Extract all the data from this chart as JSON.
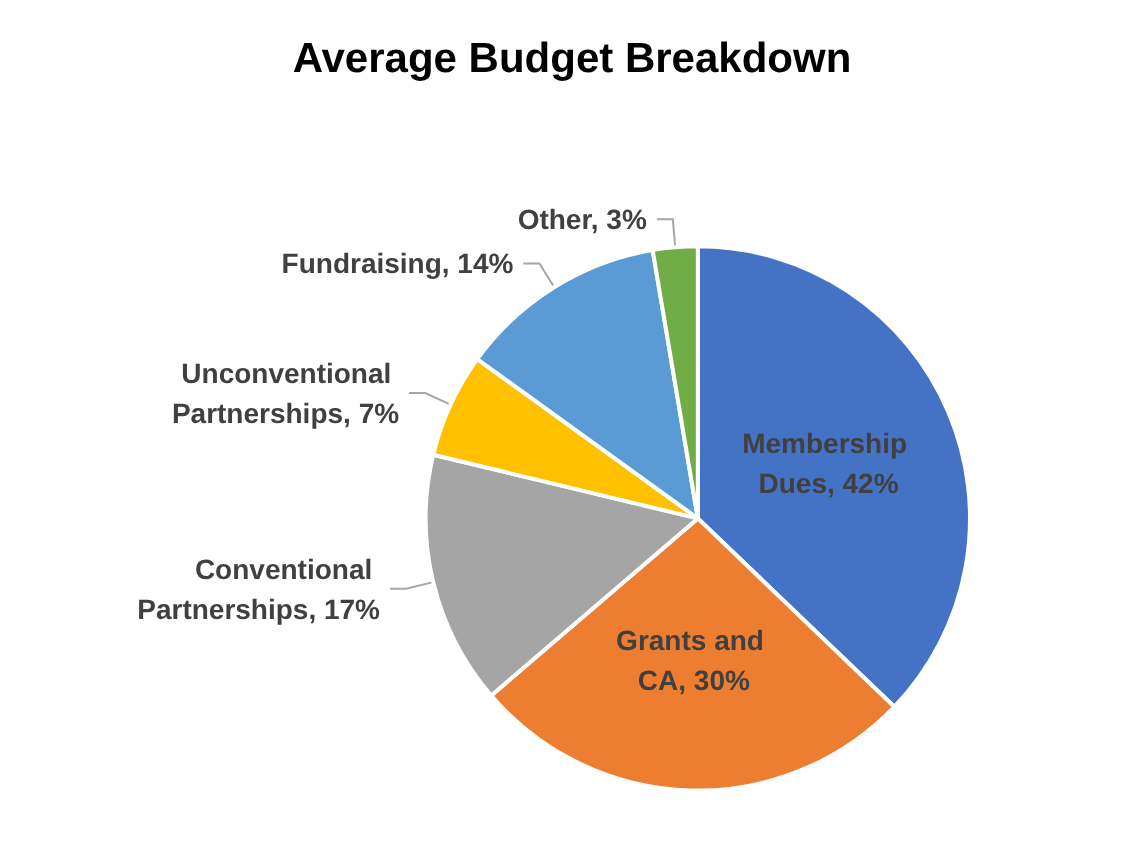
{
  "chart_data": {
    "type": "pie",
    "title": "Average Budget Breakdown",
    "categories": [
      "Membership Dues",
      "Grants and CA",
      "Conventional Partnerships",
      "Unconventional Partnerships",
      "Fundraising",
      "Other"
    ],
    "values": [
      42,
      30,
      17,
      7,
      14,
      3
    ],
    "colors": [
      "#4472c4",
      "#ed7d31",
      "#a5a5a5",
      "#ffc000",
      "#5b9bd5",
      "#70ad47"
    ],
    "value_labels": [
      "42%",
      "30%",
      "17%",
      "7%",
      "14%",
      "3%"
    ],
    "legend": false
  }
}
